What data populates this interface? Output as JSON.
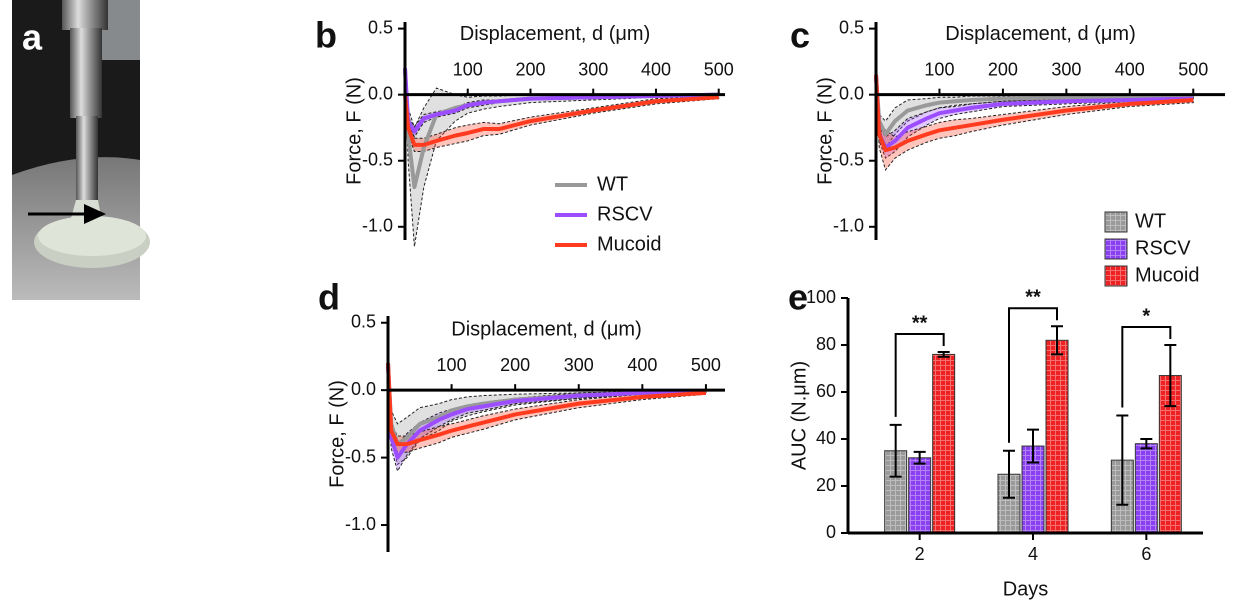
{
  "panel_a": {
    "label": "a"
  },
  "chart_data": [
    {
      "type": "line",
      "panel": "b",
      "xlabel": "Displacement, d (μm)",
      "ylabel": "Force, F (N)",
      "x": [
        0,
        5,
        15,
        30,
        50,
        80,
        100,
        125,
        150,
        200,
        300,
        400,
        500
      ],
      "xlim": [
        0,
        510
      ],
      "xticks": [
        100,
        200,
        300,
        400,
        500
      ],
      "ylim": [
        -1.1,
        0.55
      ],
      "yticks": [
        0.5,
        {
          "value": 0,
          "label": "0.0"
        },
        -0.5,
        {
          "value": -1,
          "label": "-1.0"
        }
      ],
      "legend": "lower center",
      "series": [
        {
          "name": "WT",
          "color": "#999999",
          "values": [
            0.2,
            -0.3,
            -0.7,
            -0.4,
            -0.15,
            -0.1,
            -0.08,
            -0.06,
            -0.05,
            -0.03,
            -0.02,
            -0.01,
            0
          ],
          "errors": [
            0,
            0.2,
            0.45,
            0.3,
            0.2,
            0.1,
            0.06,
            0.05,
            0.04,
            0.03,
            0.02,
            0.01,
            0.01
          ]
        },
        {
          "name": "RSCV",
          "color": "#9b4dff",
          "values": [
            0.2,
            -0.2,
            -0.28,
            -0.18,
            -0.15,
            -0.12,
            -0.08,
            -0.06,
            -0.05,
            -0.03,
            -0.02,
            -0.01,
            0
          ],
          "errors": [
            0,
            0.03,
            0.04,
            0.03,
            0.02,
            0.02,
            0.02,
            0.02,
            0.01,
            0.01,
            0.01,
            0.01,
            0.01
          ]
        },
        {
          "name": "Mucoid",
          "color": "#ff3b1f",
          "values": [
            0,
            -0.25,
            -0.38,
            -0.38,
            -0.35,
            -0.31,
            -0.29,
            -0.26,
            -0.26,
            -0.2,
            -0.12,
            -0.05,
            -0.02
          ],
          "errors": [
            0,
            0.05,
            0.05,
            0.05,
            0.05,
            0.06,
            0.06,
            0.05,
            0.04,
            0.03,
            0.02,
            0.02,
            0.01
          ]
        }
      ]
    },
    {
      "type": "line",
      "panel": "c",
      "xlabel": "Displacement, d (μm)",
      "ylabel": "Force, F (N)",
      "x": [
        0,
        5,
        15,
        30,
        50,
        80,
        100,
        125,
        150,
        200,
        300,
        400,
        500
      ],
      "xlim": [
        0,
        550
      ],
      "xticks": [
        100,
        200,
        300,
        400,
        500
      ],
      "ylim": [
        -1.1,
        0.55
      ],
      "yticks": [
        0.5,
        {
          "value": 0,
          "label": "0.0"
        },
        -0.5,
        {
          "value": -1,
          "label": "-1.0"
        }
      ],
      "series": [
        {
          "color": "#999999",
          "values": [
            0.15,
            -0.2,
            -0.3,
            -0.2,
            -0.12,
            -0.08,
            -0.06,
            -0.05,
            -0.04,
            -0.03,
            -0.02,
            -0.02,
            -0.01
          ],
          "errors": [
            0,
            0.05,
            0.1,
            0.1,
            0.08,
            0.05,
            0.04,
            0.03,
            0.03,
            0.02,
            0.02,
            0.01,
            0.01
          ]
        },
        {
          "color": "#9b4dff",
          "values": [
            0.15,
            -0.3,
            -0.4,
            -0.35,
            -0.25,
            -0.18,
            -0.14,
            -0.12,
            -0.1,
            -0.07,
            -0.05,
            -0.04,
            -0.03
          ],
          "errors": [
            0,
            0.05,
            0.08,
            0.08,
            0.07,
            0.05,
            0.04,
            0.03,
            0.03,
            0.02,
            0.02,
            0.01,
            0.01
          ]
        },
        {
          "color": "#ff3b1f",
          "values": [
            0.15,
            -0.3,
            -0.42,
            -0.4,
            -0.35,
            -0.3,
            -0.27,
            -0.25,
            -0.23,
            -0.19,
            -0.12,
            -0.07,
            -0.04
          ],
          "errors": [
            0,
            0.1,
            0.15,
            0.08,
            0.07,
            0.06,
            0.06,
            0.06,
            0.05,
            0.04,
            0.03,
            0.02,
            0.02
          ]
        }
      ]
    },
    {
      "type": "line",
      "panel": "d",
      "xlabel": "Displacement, d (μm)",
      "ylabel": "Force, F (N)",
      "x": [
        0,
        5,
        15,
        30,
        50,
        80,
        100,
        125,
        150,
        200,
        300,
        400,
        500
      ],
      "xlim": [
        0,
        530
      ],
      "xticks": [
        100,
        200,
        300,
        400,
        500
      ],
      "ylim": [
        -1.2,
        0.55
      ],
      "yticks": [
        0.5,
        {
          "value": 0,
          "label": "0.0"
        },
        -0.5,
        {
          "value": -1,
          "label": "-1.0"
        }
      ],
      "series": [
        {
          "color": "#999999",
          "values": [
            0.2,
            -0.25,
            -0.4,
            -0.35,
            -0.25,
            -0.2,
            -0.15,
            -0.12,
            -0.1,
            -0.07,
            -0.04,
            -0.02,
            -0.01
          ],
          "errors": [
            0,
            0.1,
            0.15,
            0.15,
            0.12,
            0.1,
            0.08,
            0.07,
            0.06,
            0.04,
            0.02,
            0.01,
            0.01
          ]
        },
        {
          "color": "#9b4dff",
          "values": [
            0.2,
            -0.35,
            -0.5,
            -0.4,
            -0.3,
            -0.22,
            -0.18,
            -0.14,
            -0.12,
            -0.08,
            -0.04,
            -0.02,
            -0.01
          ],
          "errors": [
            0,
            0.08,
            0.1,
            0.08,
            0.06,
            0.05,
            0.04,
            0.03,
            0.03,
            0.02,
            0.02,
            0.01,
            0.01
          ]
        },
        {
          "color": "#ff3b1f",
          "values": [
            0.2,
            -0.3,
            -0.4,
            -0.4,
            -0.37,
            -0.33,
            -0.3,
            -0.27,
            -0.24,
            -0.18,
            -0.1,
            -0.05,
            -0.02
          ],
          "errors": [
            0,
            0.05,
            0.06,
            0.06,
            0.06,
            0.06,
            0.05,
            0.05,
            0.05,
            0.04,
            0.03,
            0.02,
            0.01
          ]
        }
      ]
    },
    {
      "type": "bar",
      "panel": "e",
      "xlabel": "Days",
      "ylabel": "AUC (N.μm)",
      "categories": [
        "2",
        "4",
        "6"
      ],
      "annotations": [
        "**",
        "**",
        "*"
      ],
      "ylim": [
        0,
        100
      ],
      "yticks": [
        0,
        20,
        40,
        60,
        80,
        100
      ],
      "legend": "upper right",
      "series": [
        {
          "name": "WT",
          "color": "#9a9a9a",
          "values": [
            35,
            25,
            31
          ],
          "errors": [
            11,
            10,
            19
          ]
        },
        {
          "name": "RSCV",
          "color": "#8a3ff0",
          "values": [
            32,
            37,
            38
          ],
          "errors": [
            2.5,
            7,
            2
          ]
        },
        {
          "name": "Mucoid",
          "color": "#ee2222",
          "values": [
            76,
            82,
            67
          ],
          "errors": [
            1,
            6,
            13
          ]
        }
      ]
    }
  ]
}
